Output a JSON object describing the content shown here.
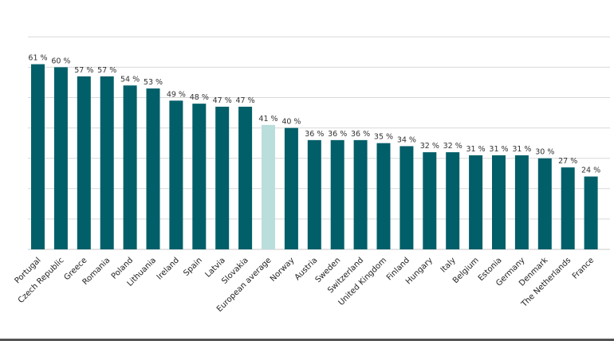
{
  "chart_data": {
    "type": "bar",
    "title": "",
    "xlabel": "",
    "ylabel": "",
    "ylim": [
      0,
      70
    ],
    "grid": true,
    "value_suffix": " %",
    "highlight_category": "European average",
    "colors": {
      "bar": "#005f69",
      "highlight": "#b9dedb"
    },
    "categories": [
      "Portugal",
      "Czech Republic",
      "Greece",
      "Romania",
      "Poland",
      "Lithuania",
      "Ireland",
      "Spain",
      "Latvia",
      "Slovakia",
      "European average",
      "Norway",
      "Austria",
      "Sweden",
      "Switzerland",
      "United Kingdom",
      "Finland",
      "Hungary",
      "Italy",
      "Belgium",
      "Estonia",
      "Germany",
      "Denmark",
      "The Netherlands",
      "France"
    ],
    "values": [
      61,
      60,
      57,
      57,
      54,
      53,
      49,
      48,
      47,
      47,
      41,
      40,
      36,
      36,
      36,
      35,
      34,
      32,
      32,
      31,
      31,
      31,
      30,
      27,
      24
    ]
  }
}
